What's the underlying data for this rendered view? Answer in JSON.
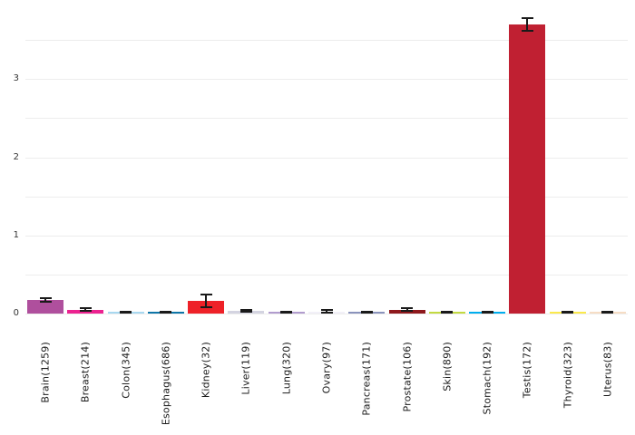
{
  "chart_data": {
    "type": "bar",
    "title": "",
    "xlabel": "",
    "ylabel": "",
    "categories": [
      "Brain(1259)",
      "Breast(214)",
      "Colon(345)",
      "Esophagus(686)",
      "Kidney(32)",
      "Liver(119)",
      "Lung(320)",
      "Ovary(97)",
      "Pancreas(171)",
      "Prostate(106)",
      "Skin(890)",
      "Stomach(192)",
      "Testis(172)",
      "Thyroid(323)",
      "Uterus(83)"
    ],
    "values": [
      0.17,
      0.05,
      0.012,
      0.015,
      0.165,
      0.04,
      0.012,
      0.01,
      0.012,
      0.05,
      0.012,
      0.012,
      3.7,
      0.012,
      0.008
    ],
    "errors": [
      0.025,
      0.015,
      0.01,
      0.01,
      0.08,
      0.012,
      0.008,
      0.04,
      0.012,
      0.018,
      0.008,
      0.008,
      0.08,
      0.01,
      0.012
    ],
    "bar_colors": [
      "#af4f9d",
      "#ec2290",
      "#a8d8f0",
      "#0e76a8",
      "#ee2128",
      "#d4d4e1",
      "#b19cce",
      "#f2f0f8",
      "#8a93bc",
      "#8e191d",
      "#c3da41",
      "#00aeef",
      "#c02032",
      "#fbe94c",
      "#f6ddc5"
    ],
    "ytick_labels": [
      "0",
      "1",
      "2",
      "3"
    ],
    "ytick_values": [
      0,
      1,
      2,
      3
    ],
    "gridline_step": 0.5,
    "gridline_max": 3.5,
    "ylim": [
      0,
      3.8
    ],
    "grid": "horizontal",
    "legend_position": "none",
    "background_color": "#ffffff",
    "gridline_color": "#ededed",
    "axis_text_color": "#333333",
    "x_label_text_color": "#1a1a1a",
    "error_bar_color": "#1a1a1a",
    "x_label_rotation_deg": 90
  }
}
